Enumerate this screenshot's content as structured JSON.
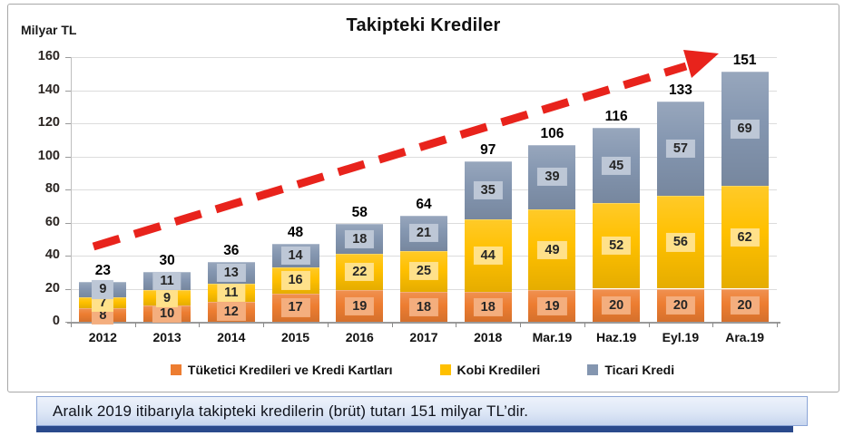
{
  "header": {
    "title": "Takipteki Krediler",
    "unit_label": "Milyar TL"
  },
  "chart_data": {
    "type": "bar",
    "stacked": true,
    "title": "Takipteki Krediler",
    "ylabel": "Milyar TL",
    "xlabel": "",
    "ylim": [
      0,
      160
    ],
    "yticks": [
      0,
      20,
      40,
      60,
      80,
      100,
      120,
      140,
      160
    ],
    "grid": true,
    "legend_position": "bottom",
    "categories": [
      "2012",
      "2013",
      "2014",
      "2015",
      "2016",
      "2017",
      "2018",
      "Mar.19",
      "Haz.19",
      "Eyl.19",
      "Ara.19"
    ],
    "series": [
      {
        "name": "Tüketici Kredileri ve Kredi Kartları",
        "color": "#ED7D31",
        "label_bg": "#F4AE7E",
        "values": [
          8,
          10,
          12,
          17,
          19,
          18,
          18,
          19,
          20,
          20,
          20
        ]
      },
      {
        "name": "Kobi Kredileri",
        "color": "#FFC000",
        "label_bg": "#FFE18A",
        "values": [
          7,
          9,
          11,
          16,
          22,
          25,
          44,
          49,
          52,
          56,
          62
        ]
      },
      {
        "name": "Ticari Kredi",
        "color": "#8496B0",
        "label_bg": "#BDC7D6",
        "values": [
          9,
          11,
          13,
          14,
          18,
          21,
          35,
          39,
          45,
          57,
          69
        ]
      }
    ],
    "totals": [
      23,
      30,
      36,
      48,
      58,
      64,
      97,
      106,
      116,
      133,
      151
    ],
    "annotations": [
      {
        "type": "trend-arrow",
        "color": "#E8231C"
      }
    ]
  },
  "caption": {
    "text": "Aralık 2019 itibarıyla takipteki kredilerin (brüt) tutarı 151 milyar TL’dir."
  }
}
